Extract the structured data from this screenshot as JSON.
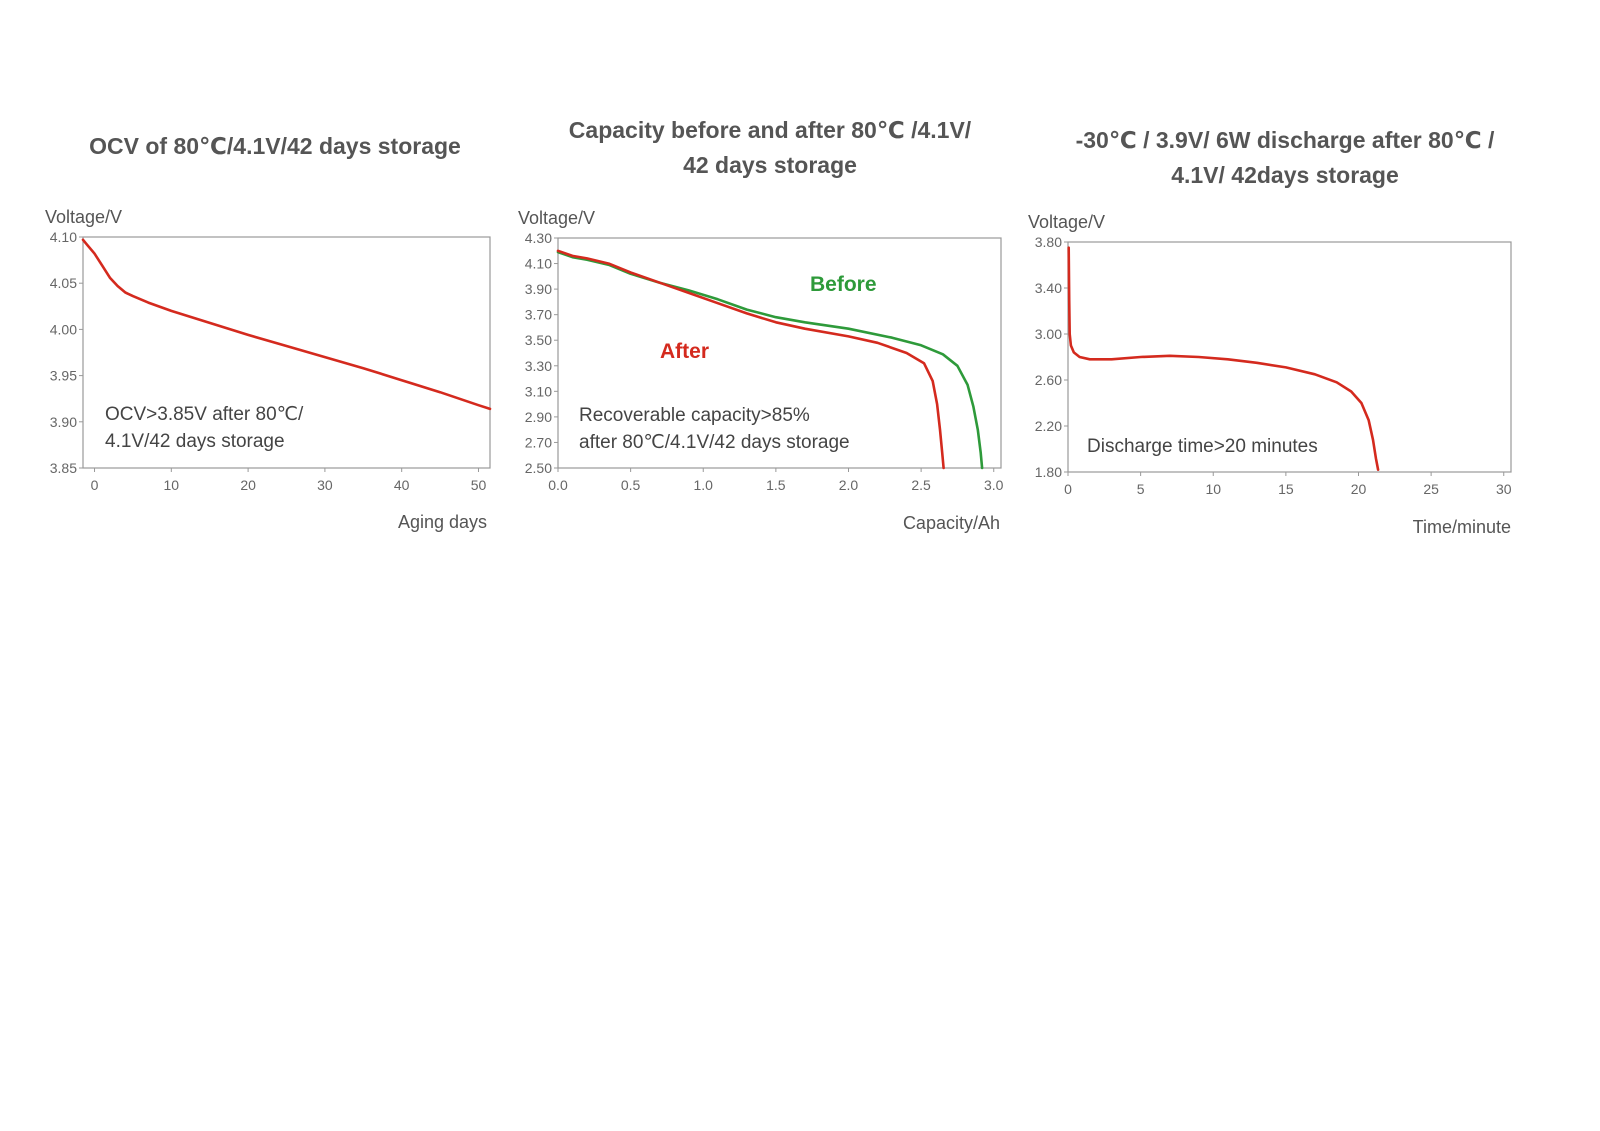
{
  "chart_data": [
    {
      "type": "line",
      "title": "OCV of  80℃/4.1V/42 days storage",
      "ylabel": "Voltage/V",
      "xlabel": "Aging days",
      "xlim": [
        -1.5,
        51.5
      ],
      "ylim": [
        3.85,
        4.1
      ],
      "xticks": [
        0,
        10,
        20,
        30,
        40,
        50
      ],
      "yticks": [
        3.85,
        3.9,
        3.95,
        4.0,
        4.05,
        4.1
      ],
      "ydecimals": 2,
      "xdecimals": 0,
      "annotation": [
        "OCV>3.85V after 80℃/",
        "4.1V/42 days storage"
      ],
      "series": [
        {
          "name": "OCV",
          "color": "#d42a1e",
          "x": [
            -1.5,
            -1,
            0,
            1,
            2,
            3,
            4,
            5,
            7,
            10,
            15,
            20,
            25,
            30,
            35,
            40,
            45,
            50,
            51.5
          ],
          "y": [
            4.097,
            4.092,
            4.082,
            4.069,
            4.056,
            4.047,
            4.04,
            4.036,
            4.029,
            4.02,
            4.007,
            3.994,
            3.982,
            3.97,
            3.958,
            3.945,
            3.932,
            3.918,
            3.914
          ]
        }
      ]
    },
    {
      "type": "line",
      "title": [
        "Capacity before and after 80℃ /4.1V/",
        "42 days storage"
      ],
      "ylabel": "Voltage/V",
      "xlabel": "Capacity/Ah",
      "xlim": [
        0,
        3.05
      ],
      "ylim": [
        2.5,
        4.3
      ],
      "xticks": [
        0.0,
        0.5,
        1.0,
        1.5,
        2.0,
        2.5,
        3.0
      ],
      "yticks": [
        2.5,
        2.7,
        2.9,
        3.1,
        3.3,
        3.5,
        3.7,
        3.9,
        4.1,
        4.3
      ],
      "ydecimals": 2,
      "xdecimals": 1,
      "annotation": [
        "Recoverable  capacity>85%",
        "after 80℃/4.1V/42 days storage"
      ],
      "series": [
        {
          "name": "Before",
          "color": "#2e9a3a",
          "x": [
            0,
            0.1,
            0.2,
            0.35,
            0.5,
            0.7,
            0.9,
            1.1,
            1.3,
            1.5,
            1.7,
            2.0,
            2.3,
            2.5,
            2.65,
            2.75,
            2.82,
            2.86,
            2.89,
            2.91,
            2.92
          ],
          "y": [
            4.19,
            4.15,
            4.13,
            4.09,
            4.02,
            3.95,
            3.89,
            3.82,
            3.74,
            3.68,
            3.64,
            3.59,
            3.52,
            3.46,
            3.39,
            3.3,
            3.15,
            2.98,
            2.8,
            2.62,
            2.5
          ]
        },
        {
          "name": "After",
          "color": "#d42a1e",
          "x": [
            0,
            0.1,
            0.2,
            0.35,
            0.5,
            0.7,
            0.9,
            1.1,
            1.3,
            1.5,
            1.7,
            2.0,
            2.2,
            2.4,
            2.52,
            2.58,
            2.61,
            2.63,
            2.645,
            2.655
          ],
          "y": [
            4.2,
            4.16,
            4.14,
            4.1,
            4.03,
            3.95,
            3.87,
            3.79,
            3.71,
            3.64,
            3.59,
            3.53,
            3.48,
            3.4,
            3.32,
            3.18,
            3.0,
            2.8,
            2.62,
            2.5
          ]
        }
      ]
    },
    {
      "type": "line",
      "title": [
        "-30℃ / 3.9V/ 6W discharge after 80℃ /",
        "4.1V/ 42days storage"
      ],
      "ylabel": "Voltage/V",
      "xlabel": "Time/minute",
      "xlim": [
        0,
        30.5
      ],
      "ylim": [
        1.8,
        3.8
      ],
      "xticks": [
        0,
        5,
        10,
        15,
        20,
        25,
        30
      ],
      "yticks": [
        1.8,
        2.2,
        2.6,
        3.0,
        3.4,
        3.8
      ],
      "ydecimals": 2,
      "xdecimals": 0,
      "annotation": [
        "Discharge time>20 minutes"
      ],
      "series": [
        {
          "name": "Discharge",
          "color": "#d42a1e",
          "x": [
            0.05,
            0.08,
            0.12,
            0.2,
            0.4,
            0.8,
            1.5,
            3,
            5,
            7,
            9,
            11,
            13,
            15,
            17,
            18.5,
            19.5,
            20.2,
            20.7,
            21.0,
            21.2,
            21.35
          ],
          "y": [
            3.75,
            3.3,
            3.0,
            2.9,
            2.84,
            2.8,
            2.78,
            2.78,
            2.8,
            2.81,
            2.8,
            2.78,
            2.75,
            2.71,
            2.65,
            2.58,
            2.5,
            2.4,
            2.25,
            2.08,
            1.92,
            1.82
          ]
        }
      ]
    }
  ]
}
